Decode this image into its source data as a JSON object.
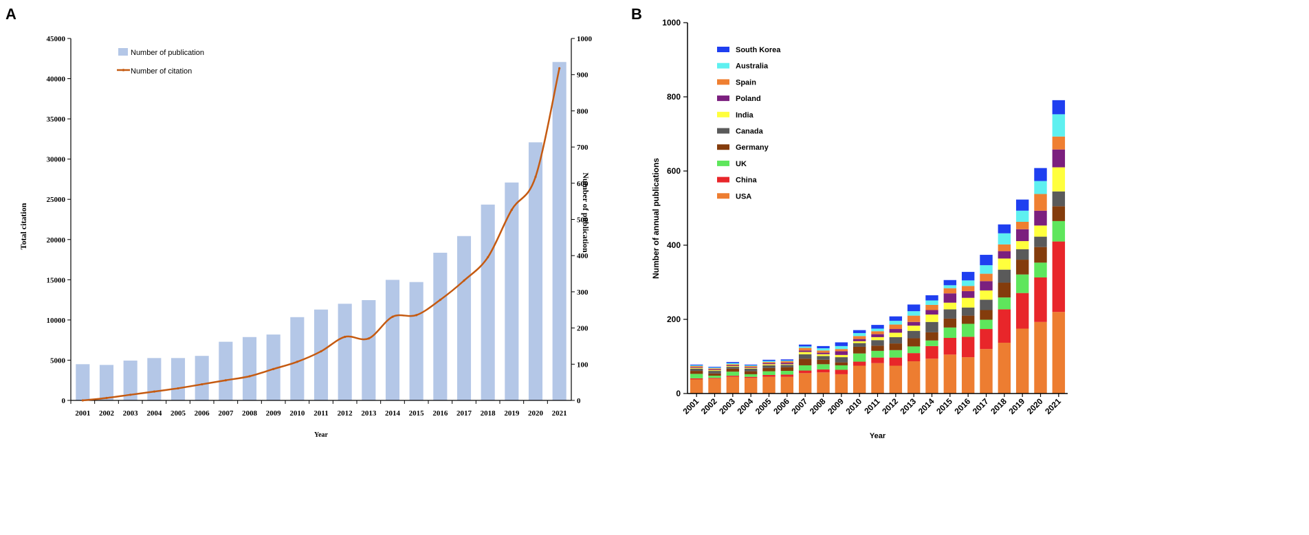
{
  "chart_data": [
    {
      "panel": "A",
      "type": "bar",
      "xlabel": "Year",
      "ylabel_left": "Total citation",
      "ylabel_right": "Number of publication",
      "ylim_left": [
        0,
        45000
      ],
      "ylim_right": [
        0,
        1000
      ],
      "yticks_left": [
        0,
        5000,
        10000,
        15000,
        20000,
        25000,
        30000,
        35000,
        40000,
        45000
      ],
      "yticks_right": [
        0,
        100,
        200,
        300,
        400,
        500,
        600,
        700,
        800,
        900,
        1000
      ],
      "categories": [
        "2001",
        "2002",
        "2003",
        "2004",
        "2005",
        "2006",
        "2007",
        "2008",
        "2009",
        "2010",
        "2011",
        "2012",
        "2013",
        "2014",
        "2015",
        "2016",
        "2017",
        "2018",
        "2019",
        "2020",
        "2021"
      ],
      "series": [
        {
          "name": "Number of publication",
          "type": "bar",
          "axis": "right",
          "color": "#b4c7e7",
          "values": [
            100,
            98,
            110,
            117,
            117,
            123,
            162,
            175,
            182,
            230,
            251,
            267,
            277,
            333,
            327,
            408,
            454,
            541,
            602,
            713,
            935
          ]
        },
        {
          "name": "Number of citation",
          "type": "line",
          "axis": "left",
          "color": "#c55a11",
          "values": [
            0,
            300,
            700,
            1100,
            1500,
            2000,
            2500,
            3000,
            3900,
            4800,
            6100,
            7900,
            7700,
            10400,
            10600,
            12500,
            14900,
            17800,
            23700,
            27800,
            41300
          ]
        }
      ]
    },
    {
      "panel": "B",
      "type": "bar",
      "stacked": true,
      "xlabel": "Year",
      "ylabel": "Number of annual publications",
      "ylim": [
        0,
        1000
      ],
      "yticks": [
        0,
        200,
        400,
        600,
        800,
        1000
      ],
      "categories": [
        "2001",
        "2002",
        "2003",
        "2004",
        "2005",
        "2006",
        "2007",
        "2008",
        "2009",
        "2010",
        "2011",
        "2012",
        "2013",
        "2014",
        "2015",
        "2016",
        "2017",
        "2018",
        "2019",
        "2020",
        "2021"
      ],
      "series": [
        {
          "name": "USA",
          "color": "#ed7d31",
          "values": [
            38,
            40,
            45,
            42,
            45,
            45,
            55,
            57,
            52,
            75,
            82,
            75,
            87,
            94,
            105,
            98,
            120,
            137,
            175,
            193,
            220
          ]
        },
        {
          "name": "China",
          "color": "#e8262a",
          "values": [
            3,
            2,
            3,
            3,
            5,
            6,
            7,
            8,
            12,
            11,
            15,
            22,
            22,
            34,
            45,
            55,
            54,
            90,
            96,
            120,
            190
          ]
        },
        {
          "name": "UK",
          "color": "#5ee65c",
          "values": [
            12,
            6,
            11,
            7,
            10,
            10,
            14,
            14,
            12,
            22,
            18,
            20,
            18,
            15,
            28,
            35,
            25,
            32,
            50,
            40,
            55
          ]
        },
        {
          "name": "Germany",
          "color": "#843c0c",
          "values": [
            8,
            6,
            8,
            8,
            9,
            10,
            18,
            12,
            8,
            18,
            14,
            18,
            22,
            22,
            24,
            22,
            26,
            40,
            40,
            42,
            40
          ]
        },
        {
          "name": "Canada",
          "color": "#5a5a5a",
          "values": [
            6,
            7,
            5,
            7,
            7,
            6,
            12,
            10,
            14,
            10,
            15,
            17,
            20,
            28,
            25,
            22,
            28,
            35,
            28,
            28,
            40
          ]
        },
        {
          "name": "India",
          "color": "#ffff3d",
          "values": [
            2,
            2,
            2,
            2,
            3,
            2,
            6,
            5,
            6,
            5,
            8,
            12,
            14,
            20,
            18,
            26,
            25,
            30,
            22,
            30,
            65
          ]
        },
        {
          "name": "Poland",
          "color": "#7b1f7e",
          "values": [
            2,
            2,
            2,
            2,
            3,
            4,
            4,
            4,
            10,
            6,
            8,
            10,
            10,
            12,
            25,
            18,
            25,
            20,
            32,
            40,
            48
          ]
        },
        {
          "name": "Spain",
          "color": "#ef7f31",
          "values": [
            3,
            3,
            3,
            3,
            3,
            4,
            7,
            6,
            6,
            8,
            8,
            12,
            17,
            14,
            14,
            14,
            20,
            18,
            20,
            45,
            35
          ]
        },
        {
          "name": "Australia",
          "color": "#5ef0f0",
          "values": [
            2,
            2,
            3,
            2,
            3,
            2,
            4,
            6,
            8,
            8,
            7,
            10,
            12,
            12,
            8,
            15,
            23,
            30,
            30,
            35,
            60
          ]
        },
        {
          "name": "South Korea",
          "color": "#1f3ff0",
          "values": [
            2,
            2,
            3,
            2,
            3,
            3,
            5,
            6,
            10,
            8,
            10,
            12,
            18,
            14,
            14,
            23,
            28,
            24,
            30,
            35,
            38
          ]
        }
      ],
      "legend_order": [
        "South Korea",
        "Australia",
        "Spain",
        "Poland",
        "India",
        "Canada",
        "Germany",
        "UK",
        "China",
        "USA"
      ]
    }
  ]
}
